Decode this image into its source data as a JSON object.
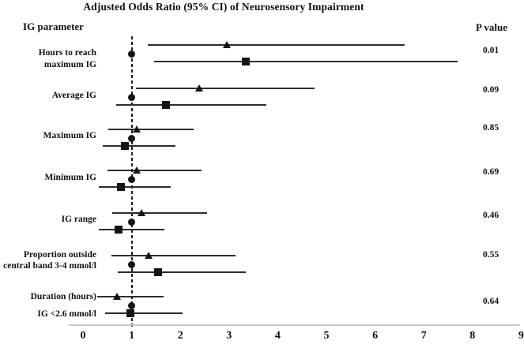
{
  "headers": {
    "ig_parameter": "IG parameter",
    "p_value": "P value"
  },
  "chart_data": {
    "type": "forest",
    "title": "Adjusted Odds Ratio (95% CI) of Neurosensory Impairment",
    "xlabel": "",
    "ylabel": "IG parameter",
    "x_axis": {
      "ticks": [
        "0",
        "1",
        "2",
        "3",
        "4",
        "5",
        "6",
        "7",
        "8",
        "9"
      ],
      "range": [
        0,
        9
      ],
      "reference_line": 1.0
    },
    "legend": "none",
    "colors": {
      "marker": "#151515",
      "ci_line": "#2d2d2d",
      "axis_line": "#c9c9c9",
      "reference_line": "#1a1a1a",
      "text": "#111111"
    },
    "groups": [
      {
        "label_lines": [
          "Hours to reach",
          "maximum IG"
        ],
        "p_value": "0.01",
        "series": [
          {
            "marker": "triangle",
            "or": 2.95,
            "ci_low": 1.33,
            "ci_high": 6.6
          },
          {
            "marker": "circle",
            "or": 1.0,
            "ci_low": null,
            "ci_high": null
          },
          {
            "marker": "square",
            "or": 3.35,
            "ci_low": 1.46,
            "ci_high": 7.7
          }
        ]
      },
      {
        "label_lines": [
          "Average IG"
        ],
        "p_value": "0.09",
        "series": [
          {
            "marker": "triangle",
            "or": 2.38,
            "ci_low": 1.08,
            "ci_high": 4.75
          },
          {
            "marker": "circle",
            "or": 1.0,
            "ci_low": null,
            "ci_high": null
          },
          {
            "marker": "square",
            "or": 1.7,
            "ci_low": 0.68,
            "ci_high": 3.76
          }
        ]
      },
      {
        "label_lines": [
          "Maximum IG"
        ],
        "p_value": "0.85",
        "series": [
          {
            "marker": "triangle",
            "or": 1.1,
            "ci_low": 0.52,
            "ci_high": 2.27
          },
          {
            "marker": "circle",
            "or": 1.0,
            "ci_low": null,
            "ci_high": null
          },
          {
            "marker": "square",
            "or": 0.86,
            "ci_low": 0.41,
            "ci_high": 1.9
          }
        ]
      },
      {
        "label_lines": [
          "Minimum IG"
        ],
        "p_value": "0.69",
        "series": [
          {
            "marker": "triangle",
            "or": 1.1,
            "ci_low": 0.5,
            "ci_high": 2.43
          },
          {
            "marker": "circle",
            "or": 1.0,
            "ci_low": null,
            "ci_high": null
          },
          {
            "marker": "square",
            "or": 0.78,
            "ci_low": 0.33,
            "ci_high": 1.8
          }
        ]
      },
      {
        "label_lines": [
          "IG range"
        ],
        "p_value": "0.46",
        "series": [
          {
            "marker": "triangle",
            "or": 1.2,
            "ci_low": 0.6,
            "ci_high": 2.55
          },
          {
            "marker": "circle",
            "or": 1.0,
            "ci_low": null,
            "ci_high": null
          },
          {
            "marker": "square",
            "or": 0.73,
            "ci_low": 0.33,
            "ci_high": 1.67
          }
        ]
      },
      {
        "label_lines": [
          "Proportion outside",
          "central band 3-4 mmol/l"
        ],
        "p_value": "0.55",
        "series": [
          {
            "marker": "triangle",
            "or": 1.35,
            "ci_low": 0.59,
            "ci_high": 3.13
          },
          {
            "marker": "circle",
            "or": 1.0,
            "ci_low": null,
            "ci_high": null
          },
          {
            "marker": "square",
            "or": 1.54,
            "ci_low": 0.71,
            "ci_high": 3.35
          }
        ]
      },
      {
        "label_lines": [
          "Duration (hours)",
          "IG <2.6 mmol/l"
        ],
        "p_value": "0.64",
        "series": [
          {
            "marker": "triangle",
            "or": 0.7,
            "ci_low": 0.3,
            "ci_high": 1.65
          },
          {
            "marker": "circle",
            "or": 1.0,
            "ci_low": null,
            "ci_high": null
          },
          {
            "marker": "square",
            "or": 0.98,
            "ci_low": 0.45,
            "ci_high": 2.05
          }
        ]
      }
    ]
  }
}
